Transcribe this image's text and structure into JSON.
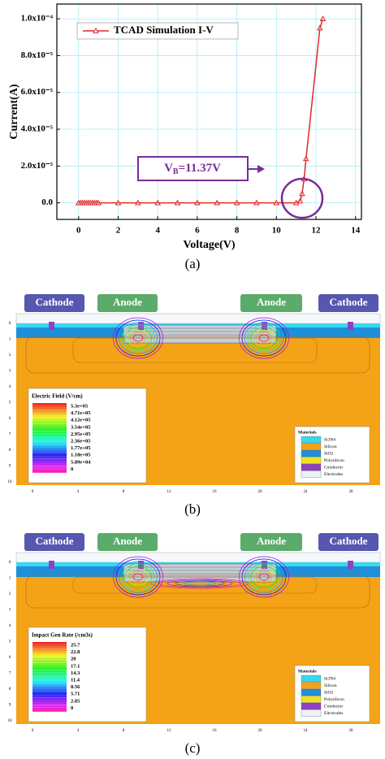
{
  "chart_data": {
    "type": "line",
    "xlabel": "Voltage(V)",
    "ylabel": "Current(A)",
    "x": [
      0,
      0.1,
      0.2,
      0.3,
      0.4,
      0.5,
      0.6,
      0.7,
      0.8,
      0.9,
      1,
      2,
      3,
      4,
      5,
      6,
      7,
      8,
      9,
      10,
      11,
      11.2,
      11.3,
      11.4,
      11.5,
      12.2,
      12.35
    ],
    "series": [
      {
        "name": "TCAD Simulation I-V",
        "color": "#e02828",
        "values": [
          0,
          0,
          0,
          0,
          0,
          0,
          0,
          0,
          0,
          0,
          0,
          0,
          0,
          0,
          0,
          0,
          0,
          0,
          0,
          0,
          0,
          1e-06,
          5e-06,
          1.3e-05,
          2.4e-05,
          9.5e-05,
          0.0001
        ]
      }
    ],
    "xlim": [
      -1.1,
      14.3
    ],
    "ylim": [
      -9e-06,
      0.000108
    ],
    "xticks": [
      0,
      2,
      4,
      6,
      8,
      10,
      12,
      14
    ],
    "yticks": [
      {
        "value": 0,
        "label": "0.0"
      },
      {
        "value": 2e-05,
        "label": "2.0x10⁻⁵"
      },
      {
        "value": 4e-05,
        "label": "4.0x10⁻⁵"
      },
      {
        "value": 6e-05,
        "label": "6.0x10⁻⁵"
      },
      {
        "value": 8e-05,
        "label": "8.0x10⁻⁵"
      },
      {
        "value": 0.0001,
        "label": "1.0x10⁻⁴"
      }
    ],
    "grid": true,
    "legend": "upper left",
    "annotation": {
      "main": "V",
      "sub": "B",
      "rest": "=11.37V"
    },
    "caption": "(a)"
  },
  "panels": [
    {
      "caption": "(b)",
      "electrodes": [
        "Cathode",
        "Anode",
        "Anode",
        "Cathode"
      ],
      "legend_title": "Electric Field (V/cm)",
      "legend_values": [
        "5.3e+05",
        "4.71e+05",
        "4.12e+05",
        "3.54e+05",
        "2.95e+05",
        "2.36e+05",
        "1.77e+05",
        "1.18e+05",
        "5.89e+04",
        "0"
      ],
      "materials_title": "Materials",
      "materials": [
        "Si3N4",
        "Silicon",
        "SiO2",
        "Polysilicon",
        "Conductor",
        "Electrodes"
      ],
      "material_colors": [
        "#38d8f0",
        "#f5a316",
        "#1e8fd8",
        "#f0e024",
        "#9040c0",
        "#eaf4f8"
      ],
      "xticks": [
        "0",
        "4",
        "8",
        "12",
        "16",
        "20",
        "24",
        "28"
      ],
      "yticks": [
        "0",
        "1",
        "2",
        "3",
        "4",
        "5",
        "6",
        "7",
        "8",
        "9",
        "10"
      ]
    },
    {
      "caption": "(c)",
      "electrodes": [
        "Cathode",
        "Anode",
        "Anode",
        "Cathode"
      ],
      "legend_title": "Impact Gen Rate (/cm3s)",
      "legend_values": [
        "25.7",
        "22.8",
        "20",
        "17.1",
        "14.3",
        "11.4",
        "8.56",
        "5.71",
        "2.85",
        "0"
      ],
      "materials_title": "Materials",
      "materials": [
        "Si3N4",
        "Silicon",
        "SiO2",
        "Polysilicon",
        "Conductor",
        "Electrodes"
      ],
      "material_colors": [
        "#38d8f0",
        "#f5a316",
        "#1e8fd8",
        "#f0e024",
        "#9040c0",
        "#eaf4f8"
      ],
      "xticks": [
        "0",
        "4",
        "8",
        "12",
        "16",
        "20",
        "24",
        "28"
      ],
      "yticks": [
        "0",
        "1",
        "2",
        "3",
        "4",
        "5",
        "6",
        "7",
        "8",
        "9",
        "10"
      ]
    }
  ]
}
